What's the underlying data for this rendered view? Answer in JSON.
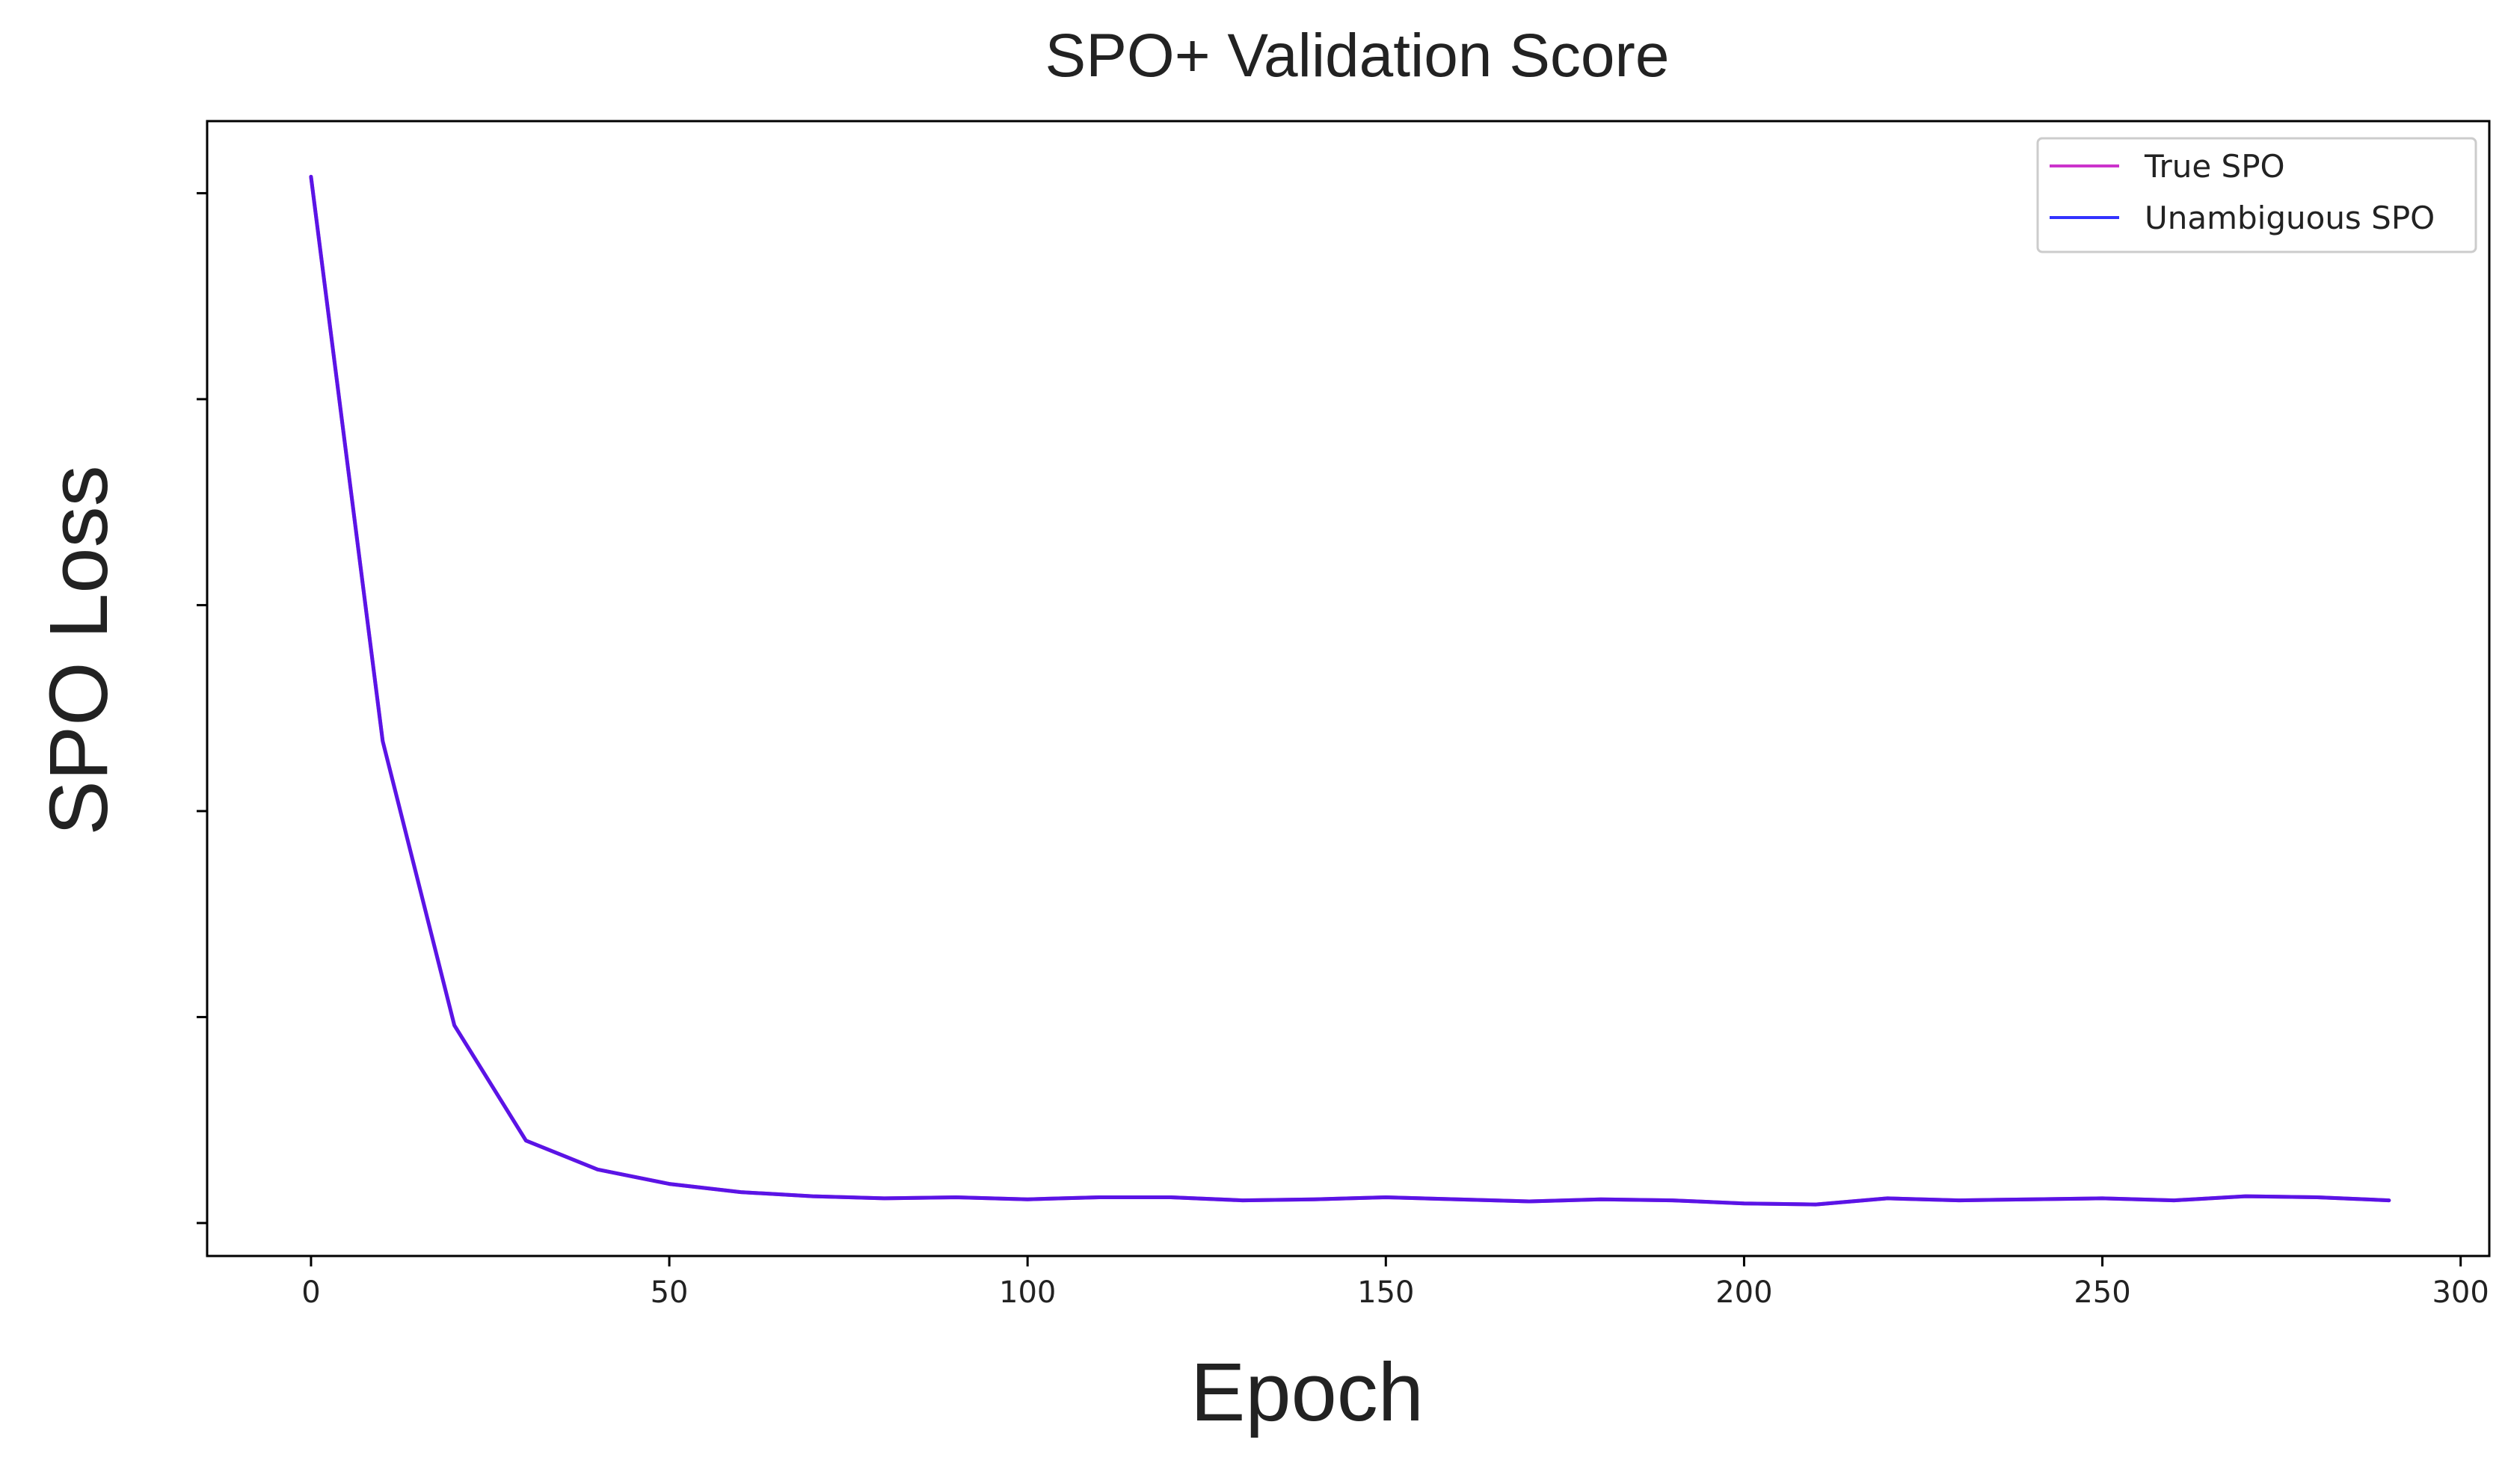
{
  "chart_data": {
    "type": "line",
    "title": "SPO+ Validation Score",
    "xlabel": "Epoch",
    "ylabel": "SPO Loss",
    "xlim": [
      -14.5,
      304
    ],
    "ylim": [
      -0.16,
      5.35
    ],
    "xticks": [
      0,
      50,
      100,
      150,
      200,
      250,
      300
    ],
    "yticks": [
      0,
      1,
      2,
      3,
      4,
      5
    ],
    "ytick_labels_shown": false,
    "grid": false,
    "legend": {
      "location": "top-right",
      "entries": [
        "True SPO",
        "Unambiguous SPO"
      ]
    },
    "x": [
      0,
      10,
      20,
      30,
      40,
      50,
      60,
      70,
      80,
      90,
      100,
      110,
      120,
      130,
      140,
      150,
      160,
      170,
      180,
      190,
      200,
      210,
      220,
      230,
      240,
      250,
      260,
      270,
      280,
      290
    ],
    "series": [
      {
        "name": "True SPO",
        "color": "#cc33cc",
        "values": [
          5.08,
          2.34,
          0.96,
          0.4,
          0.26,
          0.19,
          0.15,
          0.13,
          0.12,
          0.125,
          0.115,
          0.125,
          0.125,
          0.11,
          0.115,
          0.125,
          0.115,
          0.105,
          0.115,
          0.11,
          0.095,
          0.09,
          0.12,
          0.11,
          0.115,
          0.12,
          0.11,
          0.13,
          0.125,
          0.11
        ]
      },
      {
        "name": "Unambiguous SPO",
        "color": "#3333ff",
        "values": [
          5.08,
          2.34,
          0.96,
          0.4,
          0.26,
          0.19,
          0.15,
          0.13,
          0.12,
          0.125,
          0.115,
          0.125,
          0.125,
          0.11,
          0.115,
          0.125,
          0.115,
          0.105,
          0.115,
          0.11,
          0.095,
          0.09,
          0.12,
          0.11,
          0.115,
          0.12,
          0.11,
          0.13,
          0.125,
          0.11
        ]
      }
    ]
  },
  "colors": {
    "axis": "#000000",
    "text": "#222222",
    "combined_line": "#5a14e6"
  }
}
